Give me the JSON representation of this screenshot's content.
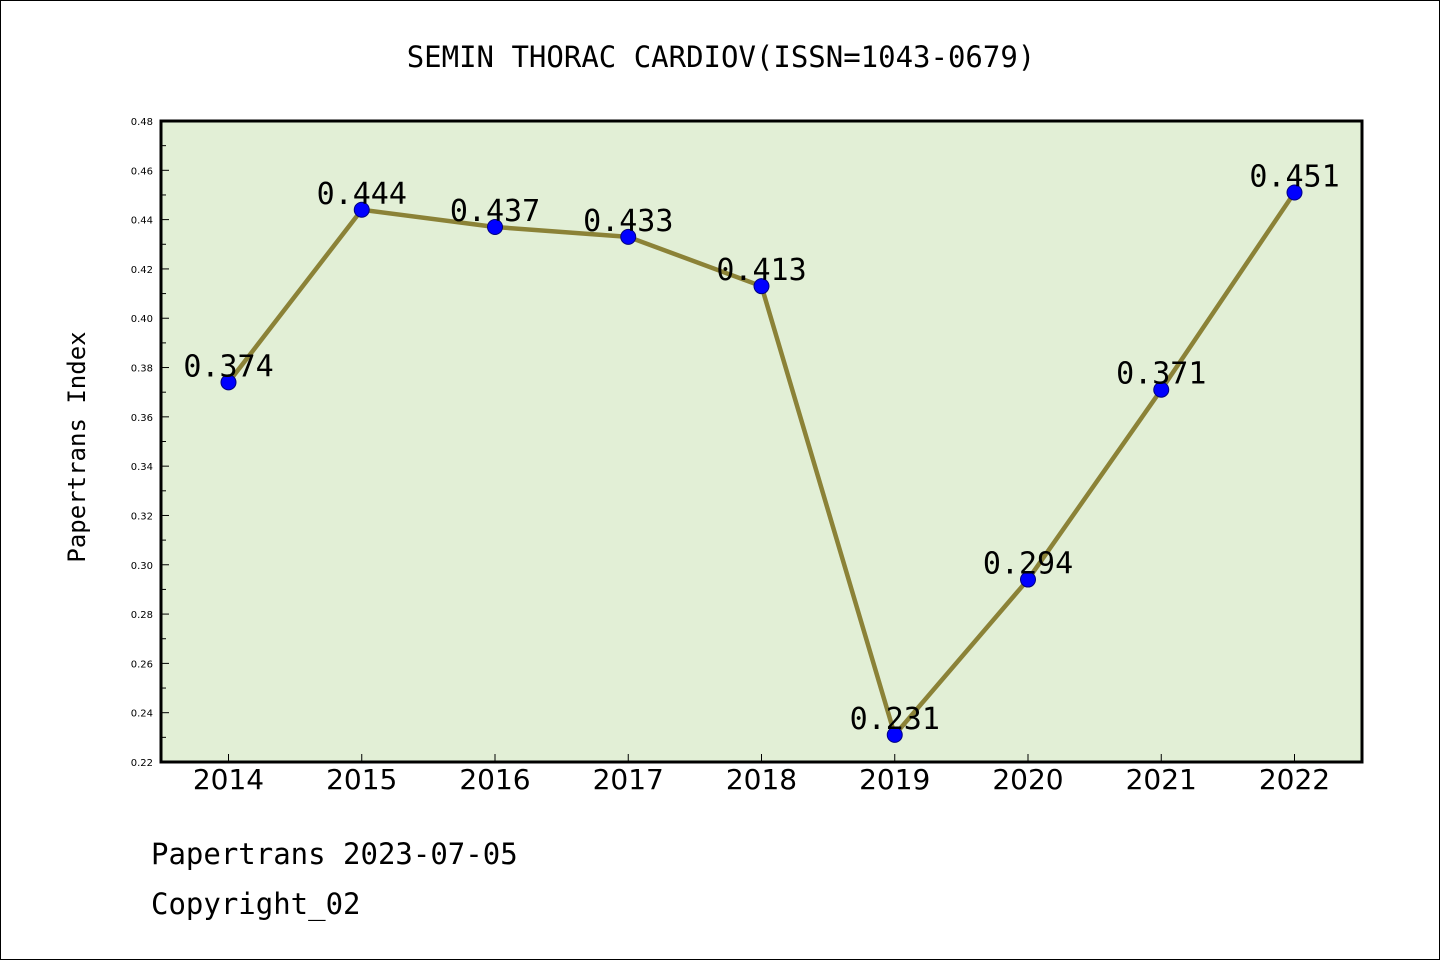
{
  "chart_data": {
    "type": "line",
    "title": "SEMIN THORAC CARDIOV(ISSN=1043-0679)",
    "xlabel": "",
    "ylabel": "Papertrans Index",
    "categories": [
      "2014",
      "2015",
      "2016",
      "2017",
      "2018",
      "2019",
      "2020",
      "2021",
      "2022"
    ],
    "series": [
      {
        "values": [
          0.374,
          0.444,
          0.437,
          0.433,
          0.413,
          0.231,
          0.294,
          0.371,
          0.451
        ]
      }
    ],
    "data_labels": [
      "0.374",
      "0.444",
      "0.437",
      "0.433",
      "0.413",
      "0.231",
      "0.294",
      "0.371",
      "0.451"
    ],
    "ylim": [
      0.22,
      0.48
    ],
    "yticks": [
      "0.22",
      "0.24",
      "0.26",
      "0.28",
      "0.30",
      "0.32",
      "0.34",
      "0.36",
      "0.38",
      "0.40",
      "0.42",
      "0.44",
      "0.46",
      "0.48"
    ],
    "grid": false,
    "colors": {
      "plot_background": "#e2efd6",
      "line": "#8b8237",
      "marker": "#0000ff"
    }
  },
  "footer": {
    "line1": "Papertrans 2023-07-05",
    "line2": "Copyright_02"
  }
}
